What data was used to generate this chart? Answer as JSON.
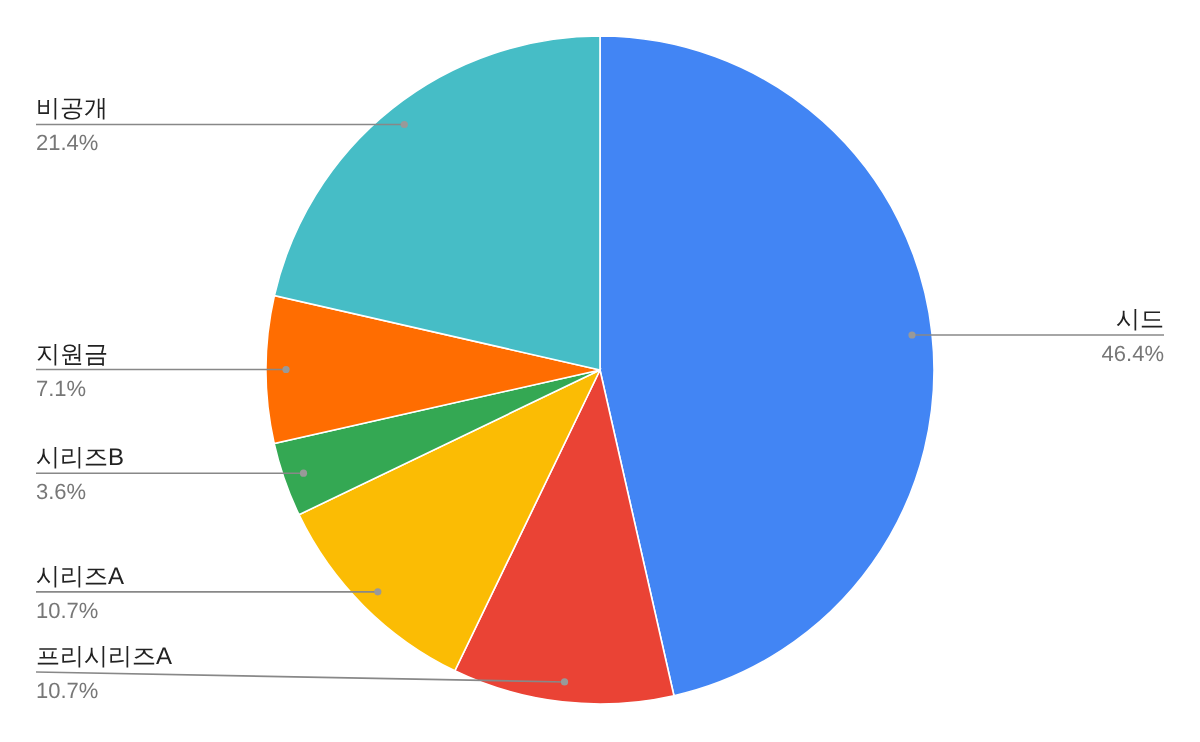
{
  "chart_data": {
    "type": "pie",
    "categories": [
      "시드",
      "프리시리즈A",
      "시리즈A",
      "시리즈B",
      "지원금",
      "비공개"
    ],
    "values": [
      46.4,
      10.7,
      10.7,
      3.6,
      7.1,
      21.4
    ],
    "colors": [
      "#4285f4",
      "#ea4335",
      "#fbbc04",
      "#34a853",
      "#ff6d01",
      "#46bdc6"
    ],
    "value_labels": [
      "46.4%",
      "10.7%",
      "10.7%",
      "3.6%",
      "7.1%",
      "21.4%"
    ]
  }
}
